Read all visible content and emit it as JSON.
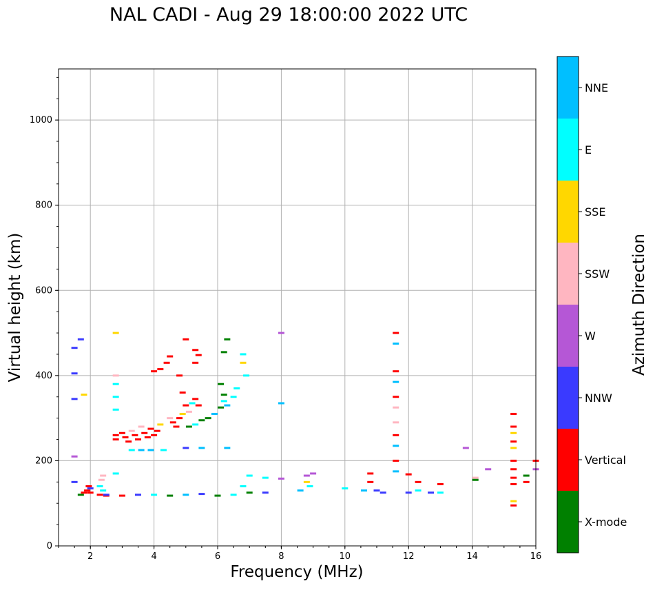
{
  "chart_data": {
    "type": "scatter",
    "title": "NAL CADI - Aug 29 18:00:00 2022 UTC",
    "xlabel": "Frequency (MHz)",
    "ylabel": "Virtual height (km)",
    "xlim": [
      1,
      16
    ],
    "ylim": [
      0,
      1120
    ],
    "xticks": [
      2,
      4,
      6,
      8,
      10,
      12,
      14,
      16
    ],
    "yticks": [
      0,
      200,
      400,
      600,
      800,
      1000
    ],
    "grid": true,
    "colorbar": {
      "label": "Azimuth Direction",
      "categories": [
        {
          "name": "X-mode",
          "color": "#008000"
        },
        {
          "name": "Vertical",
          "color": "#ff0000"
        },
        {
          "name": "NNW",
          "color": "#3a3aff"
        },
        {
          "name": "W",
          "color": "#b557d6"
        },
        {
          "name": "SSW",
          "color": "#ffb6c1"
        },
        {
          "name": "SSE",
          "color": "#ffd700"
        },
        {
          "name": "E",
          "color": "#00ffff"
        },
        {
          "name": "NNE",
          "color": "#00bfff"
        }
      ]
    },
    "points": [
      [
        1.5,
        465,
        "NNW"
      ],
      [
        1.5,
        405,
        "NNW"
      ],
      [
        1.5,
        345,
        "NNW"
      ],
      [
        1.5,
        210,
        "W"
      ],
      [
        1.5,
        150,
        "NNW"
      ],
      [
        1.7,
        485,
        "NNW"
      ],
      [
        1.8,
        355,
        "SSE"
      ],
      [
        1.7,
        120,
        "X-mode"
      ],
      [
        1.8,
        125,
        "Vertical"
      ],
      [
        1.9,
        130,
        "Vertical"
      ],
      [
        2.0,
        125,
        "Vertical"
      ],
      [
        2.0,
        135,
        "NNW"
      ],
      [
        1.95,
        140,
        "Vertical"
      ],
      [
        2.3,
        120,
        "Vertical"
      ],
      [
        2.3,
        140,
        "E"
      ],
      [
        2.35,
        155,
        "SSW"
      ],
      [
        2.4,
        165,
        "SSW"
      ],
      [
        2.4,
        130,
        "E"
      ],
      [
        2.5,
        118,
        "Vertical"
      ],
      [
        2.8,
        500,
        "SSE"
      ],
      [
        2.8,
        400,
        "SSW"
      ],
      [
        2.8,
        380,
        "E"
      ],
      [
        2.8,
        350,
        "E"
      ],
      [
        2.8,
        320,
        "E"
      ],
      [
        2.8,
        170,
        "E"
      ],
      [
        2.8,
        260,
        "Vertical"
      ],
      [
        2.8,
        250,
        "Vertical"
      ],
      [
        3.0,
        265,
        "Vertical"
      ],
      [
        3.1,
        255,
        "Vertical"
      ],
      [
        3.2,
        245,
        "Vertical"
      ],
      [
        3.3,
        270,
        "SSW"
      ],
      [
        3.4,
        260,
        "Vertical"
      ],
      [
        3.5,
        250,
        "Vertical"
      ],
      [
        3.6,
        280,
        "SSW"
      ],
      [
        3.7,
        265,
        "Vertical"
      ],
      [
        3.8,
        255,
        "Vertical"
      ],
      [
        3.9,
        275,
        "Vertical"
      ],
      [
        4.0,
        260,
        "Vertical"
      ],
      [
        4.1,
        270,
        "Vertical"
      ],
      [
        4.2,
        285,
        "SSE"
      ],
      [
        3.3,
        225,
        "E"
      ],
      [
        3.6,
        225,
        "NNE"
      ],
      [
        3.9,
        225,
        "NNE"
      ],
      [
        4.3,
        225,
        "E"
      ],
      [
        4.0,
        410,
        "Vertical"
      ],
      [
        4.2,
        415,
        "Vertical"
      ],
      [
        4.4,
        430,
        "Vertical"
      ],
      [
        4.5,
        445,
        "Vertical"
      ],
      [
        4.8,
        400,
        "Vertical"
      ],
      [
        4.9,
        360,
        "Vertical"
      ],
      [
        5.0,
        485,
        "Vertical"
      ],
      [
        5.3,
        460,
        "Vertical"
      ],
      [
        5.3,
        430,
        "Vertical"
      ],
      [
        5.4,
        448,
        "Vertical"
      ],
      [
        4.5,
        300,
        "SSW"
      ],
      [
        4.6,
        290,
        "Vertical"
      ],
      [
        4.7,
        280,
        "Vertical"
      ],
      [
        4.8,
        300,
        "Vertical"
      ],
      [
        4.9,
        310,
        "SSE"
      ],
      [
        5.0,
        330,
        "Vertical"
      ],
      [
        5.1,
        315,
        "SSW"
      ],
      [
        5.2,
        335,
        "E"
      ],
      [
        5.3,
        345,
        "Vertical"
      ],
      [
        5.4,
        330,
        "Vertical"
      ],
      [
        5.1,
        280,
        "X-mode"
      ],
      [
        5.3,
        285,
        "E"
      ],
      [
        5.5,
        295,
        "X-mode"
      ],
      [
        5.7,
        300,
        "X-mode"
      ],
      [
        5.9,
        310,
        "NNE"
      ],
      [
        6.1,
        325,
        "X-mode"
      ],
      [
        6.1,
        380,
        "X-mode"
      ],
      [
        6.2,
        355,
        "X-mode"
      ],
      [
        6.2,
        340,
        "E"
      ],
      [
        6.3,
        330,
        "NNE"
      ],
      [
        6.2,
        455,
        "X-mode"
      ],
      [
        6.3,
        485,
        "X-mode"
      ],
      [
        6.6,
        370,
        "E"
      ],
      [
        6.8,
        450,
        "E"
      ],
      [
        6.8,
        430,
        "SSE"
      ],
      [
        6.9,
        400,
        "E"
      ],
      [
        6.5,
        350,
        "E"
      ],
      [
        5.0,
        230,
        "NNW"
      ],
      [
        5.5,
        230,
        "NNE"
      ],
      [
        6.3,
        230,
        "NNE"
      ],
      [
        2.5,
        120,
        "NNW"
      ],
      [
        3.0,
        118,
        "Vertical"
      ],
      [
        3.5,
        120,
        "NNW"
      ],
      [
        4.0,
        120,
        "E"
      ],
      [
        4.5,
        118,
        "X-mode"
      ],
      [
        5.0,
        120,
        "NNE"
      ],
      [
        5.5,
        122,
        "NNW"
      ],
      [
        6.0,
        118,
        "X-mode"
      ],
      [
        6.5,
        120,
        "E"
      ],
      [
        7.0,
        125,
        "X-mode"
      ],
      [
        7.5,
        125,
        "NNW"
      ],
      [
        7.0,
        165,
        "E"
      ],
      [
        6.8,
        140,
        "E"
      ],
      [
        7.5,
        160,
        "E"
      ],
      [
        8.0,
        500,
        "W"
      ],
      [
        8.0,
        335,
        "NNE"
      ],
      [
        8.0,
        158,
        "W"
      ],
      [
        8.6,
        130,
        "NNE"
      ],
      [
        8.8,
        165,
        "W"
      ],
      [
        8.8,
        150,
        "SSE"
      ],
      [
        8.9,
        140,
        "E"
      ],
      [
        9.0,
        170,
        "W"
      ],
      [
        10.0,
        135,
        "E"
      ],
      [
        10.6,
        130,
        "NNE"
      ],
      [
        10.8,
        170,
        "Vertical"
      ],
      [
        10.8,
        150,
        "Vertical"
      ],
      [
        11.0,
        130,
        "NNW"
      ],
      [
        11.2,
        125,
        "NNW"
      ],
      [
        11.6,
        500,
        "Vertical"
      ],
      [
        11.6,
        475,
        "NNE"
      ],
      [
        11.6,
        410,
        "Vertical"
      ],
      [
        11.6,
        385,
        "NNE"
      ],
      [
        11.6,
        350,
        "Vertical"
      ],
      [
        11.6,
        325,
        "SSW"
      ],
      [
        11.6,
        290,
        "SSW"
      ],
      [
        11.6,
        260,
        "Vertical"
      ],
      [
        11.6,
        235,
        "NNE"
      ],
      [
        11.6,
        200,
        "Vertical"
      ],
      [
        11.6,
        175,
        "NNE"
      ],
      [
        12.0,
        168,
        "Vertical"
      ],
      [
        12.0,
        125,
        "NNW"
      ],
      [
        12.3,
        150,
        "Vertical"
      ],
      [
        12.3,
        130,
        "E"
      ],
      [
        12.7,
        125,
        "NNW"
      ],
      [
        13.0,
        145,
        "Vertical"
      ],
      [
        13.0,
        125,
        "E"
      ],
      [
        13.8,
        230,
        "W"
      ],
      [
        14.1,
        160,
        "SSW"
      ],
      [
        14.1,
        155,
        "X-mode"
      ],
      [
        14.5,
        180,
        "W"
      ],
      [
        15.3,
        310,
        "Vertical"
      ],
      [
        15.3,
        280,
        "Vertical"
      ],
      [
        15.3,
        265,
        "SSE"
      ],
      [
        15.3,
        245,
        "Vertical"
      ],
      [
        15.3,
        230,
        "SSE"
      ],
      [
        15.3,
        200,
        "Vertical"
      ],
      [
        15.3,
        180,
        "Vertical"
      ],
      [
        15.3,
        160,
        "Vertical"
      ],
      [
        15.3,
        145,
        "Vertical"
      ],
      [
        15.3,
        105,
        "SSE"
      ],
      [
        15.3,
        95,
        "Vertical"
      ],
      [
        15.7,
        165,
        "X-mode"
      ],
      [
        15.7,
        150,
        "Vertical"
      ],
      [
        16.0,
        200,
        "Vertical"
      ],
      [
        16.0,
        180,
        "W"
      ]
    ]
  }
}
